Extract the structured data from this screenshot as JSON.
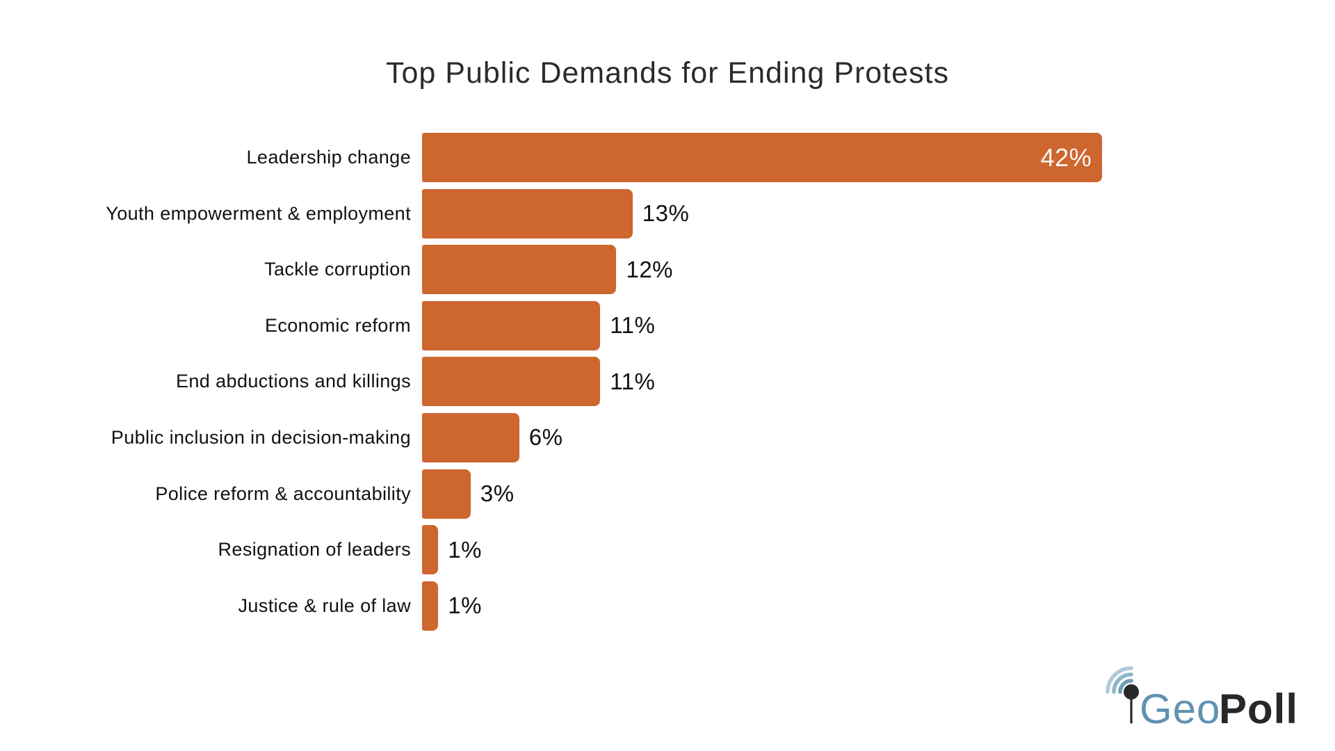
{
  "title": "Top Public Demands for Ending Protests",
  "chart_data": {
    "type": "bar",
    "orientation": "horizontal",
    "title": "Top Public Demands for Ending Protests",
    "categories": [
      "Leadership change",
      "Youth empowerment & employment",
      "Tackle corruption",
      "Economic reform",
      "End abductions and killings",
      "Public inclusion in decision-making",
      "Police reform & accountability",
      "Resignation of leaders",
      "Justice & rule of law"
    ],
    "values": [
      42,
      13,
      12,
      11,
      11,
      6,
      3,
      1,
      1
    ],
    "value_labels": [
      "42%",
      "13%",
      "12%",
      "11%",
      "11%",
      "6%",
      "3%",
      "1%",
      "1%"
    ],
    "value_suffix": "%",
    "xlim": [
      0,
      42
    ],
    "grid": false,
    "legend": false,
    "bar_color": "#CE662F",
    "value_label_inside_color": "#faf8f5",
    "value_label_outside_color": "#111111"
  },
  "logo": {
    "geo": "Geo",
    "poll": "Poll",
    "geo_color": "#5E92B2",
    "poll_color": "#26282B",
    "pin_color": "#28292B",
    "arc_colors": [
      "#6F9DB5",
      "#8FB5C8",
      "#AECBD8"
    ],
    "icons": [
      "map-pin-icon",
      "signal-arcs-icon"
    ]
  }
}
